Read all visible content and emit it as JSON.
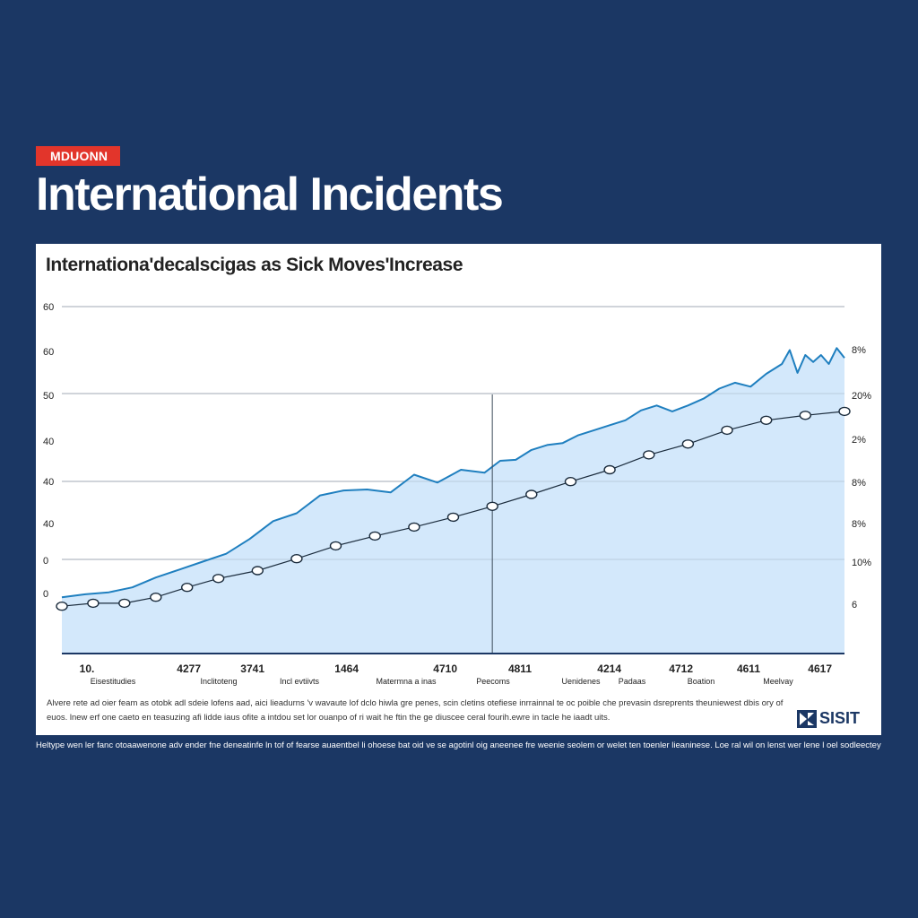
{
  "header": {
    "tag": "MDUONN",
    "title": "International Incidents"
  },
  "chart_data": {
    "type": "line",
    "title": "Internationa'decalscigas as Sick Moves'Increase",
    "left_ticks": [
      "60",
      "60",
      "50",
      "40",
      "40",
      "40",
      "0",
      "0"
    ],
    "right_ticks": [
      "8%",
      "20%",
      "2%",
      "8%",
      "8%",
      "10%",
      "6"
    ],
    "x_tick_numbers": [
      "10.",
      "4277",
      "3741",
      "1464",
      "4710",
      "4811",
      "4214",
      "4712",
      "4611",
      "4617"
    ],
    "x_tick_labels": [
      "Eisestitudies",
      "Inclitoteng",
      "Incl evtiivts",
      "Matermna a inas",
      "Peecoms",
      "Uenidenes",
      "Padaas",
      "Boation",
      "Meelvay"
    ],
    "series": [
      {
        "style": "filled-line",
        "color": "#1f7fbf",
        "x": [
          0,
          3,
          6,
          9,
          12,
          15,
          18,
          21,
          24,
          27,
          30,
          33,
          36,
          39,
          42,
          45,
          48,
          51,
          54,
          56,
          58,
          60,
          62,
          64,
          66,
          68,
          70,
          72,
          74,
          76,
          78,
          80,
          82,
          84,
          86,
          88,
          90,
          92,
          93,
          94,
          95,
          96,
          97,
          98,
          99,
          100
        ],
        "y": [
          5.6,
          5.9,
          6.1,
          6.6,
          7.6,
          8.4,
          9.2,
          10.0,
          11.5,
          13.3,
          14.1,
          15.9,
          16.4,
          16.5,
          16.2,
          18.0,
          17.2,
          18.5,
          18.2,
          19.4,
          19.5,
          20.5,
          21.0,
          21.2,
          22.0,
          22.5,
          23.0,
          23.5,
          24.5,
          25.0,
          24.4,
          25.0,
          25.7,
          26.7,
          27.3,
          26.9,
          28.2,
          29.2,
          30.6,
          28.3,
          30.1,
          29.4,
          30.1,
          29.2,
          30.8,
          29.8
        ]
      },
      {
        "style": "ring-markers",
        "color": "#1a2b3c",
        "x": [
          0,
          4,
          8,
          12,
          16,
          20,
          25,
          30,
          35,
          40,
          45,
          50,
          55,
          60,
          65,
          70,
          75,
          80,
          85,
          90,
          95,
          100
        ],
        "y": [
          4.7,
          5.0,
          5.0,
          5.6,
          6.6,
          7.5,
          8.3,
          9.5,
          10.8,
          11.8,
          12.7,
          13.7,
          14.8,
          16.0,
          17.3,
          18.5,
          20.0,
          21.1,
          22.5,
          23.5,
          24.0,
          24.4
        ]
      }
    ],
    "ylim": [
      0,
      35
    ],
    "grid": true,
    "vertical_marker_x": 55
  },
  "caption": {
    "line1": "Alvere rete ad oier feam as otobk adl sdeie lofens aad, aici lieadurns 'v wavaute lof dclo hiwla gre penes, scin cletins otefiese inrrainnal te oc poible che prevasin dsreprents theuniewest dbis ory of",
    "line2": "euos. lnew erf one caeto en teasuzing afi lidde iaus ofite a intdou set lor ouanpo of ri wait he ftin the ge diuscee ceral fourih.ewre in tacle he iaadt uits."
  },
  "brand": {
    "label": "SISIT"
  },
  "footer": {
    "text": "Heltype wen ler fanc otoaawenone adv ender fne deneatinfe ln tof of fearse auaentbel li ohoese bat oid ve se agotinl oig aneenee fre weenie seolem or welet ten toenler lieaninese. Loe ral wil on lenst wer lene l oel sodleectey hainal."
  }
}
